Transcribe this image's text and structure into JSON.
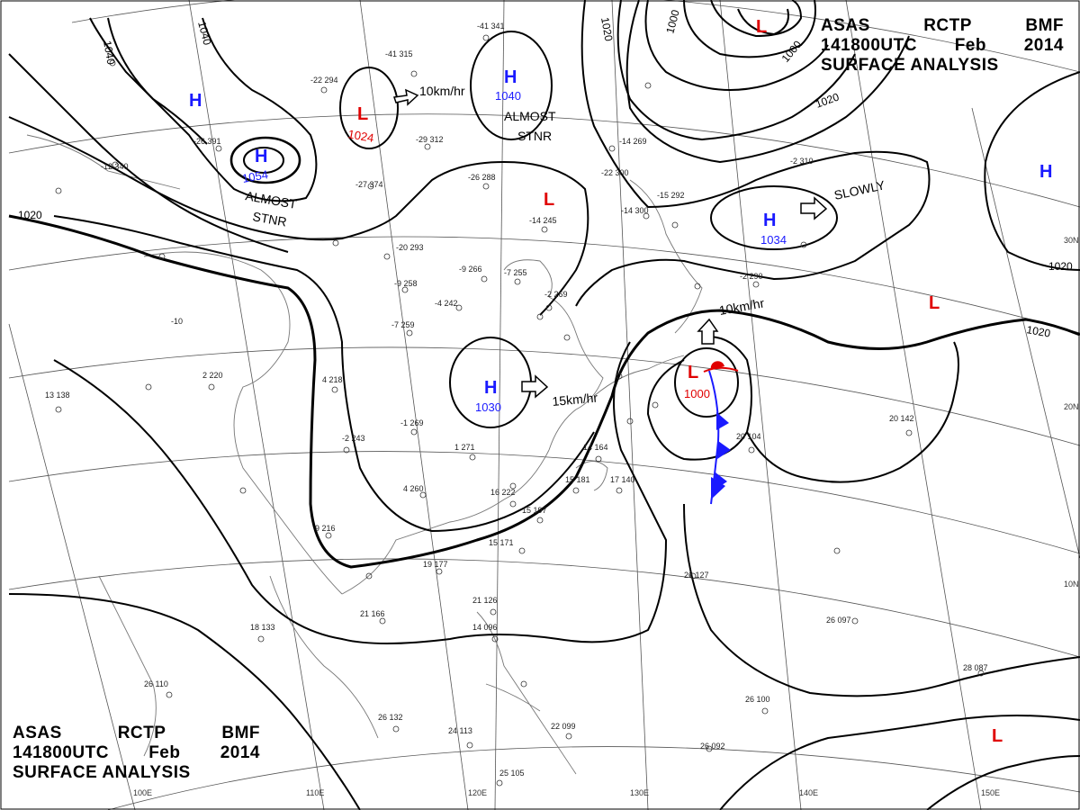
{
  "header": {
    "line1": [
      "ASAS",
      "RCTP",
      "BMF"
    ],
    "line2": [
      "141800UTC",
      "Feb",
      "2014"
    ],
    "line3": "SURFACE  ANALYSIS"
  },
  "pressure_centers": [
    {
      "type": "H",
      "value": "",
      "color": "#1a1aff"
    },
    {
      "type": "H",
      "value": "1054",
      "color": "#1a1aff"
    },
    {
      "type": "L",
      "value": "1024",
      "color": "#e00000"
    },
    {
      "type": "H",
      "value": "1040",
      "color": "#1a1aff"
    },
    {
      "type": "L",
      "value": "",
      "color": "#e00000"
    },
    {
      "type": "H",
      "value": "1030",
      "color": "#1a1aff"
    },
    {
      "type": "L",
      "value": "1000",
      "color": "#e00000"
    },
    {
      "type": "H",
      "value": "1034",
      "color": "#1a1aff"
    },
    {
      "type": "L",
      "value": "",
      "color": "#e00000"
    },
    {
      "type": "H",
      "value": "",
      "color": "#1a1aff"
    },
    {
      "type": "L",
      "value": "",
      "color": "#e00000"
    },
    {
      "type": "L",
      "value": "",
      "color": "#e00000"
    }
  ],
  "motion_labels": [
    "10km/hr",
    "ALMOST",
    "STNR",
    "ALMOST",
    "STNR",
    "15km/hr",
    "SLOWLY",
    "10km/hr"
  ],
  "isobar_labels": [
    "1040",
    "1040",
    "1020",
    "1020",
    "1000",
    "1000",
    "1020",
    "1020",
    "1020"
  ],
  "longitude_labels": [
    "100E",
    "110E",
    "120E",
    "130E",
    "140E",
    "150E"
  ],
  "latitude_labels": [
    "30N",
    "20N",
    "10N"
  ],
  "front_colors": {
    "cold": "#1a1aff",
    "warm": "#e00000"
  },
  "station_samples": [
    "-41 341",
    "-29 312",
    "-26 288",
    "-22 300",
    "-14 245",
    "-9 266",
    "-7 255",
    "-4 242",
    "-7 259",
    "-1 269",
    "1 271",
    "4 260",
    "-27 374",
    "-26 391",
    "-22 294",
    "-41 315",
    "-12 340",
    "-20 293",
    "-9 258",
    "-10",
    "2 220",
    "4 218",
    "13 138",
    "-2 243",
    "9 216",
    "16 222",
    "15 197",
    "15 171",
    "19 177",
    "21 166",
    "18 133",
    "21 126",
    "14 096",
    "26 110",
    "26 132",
    "24 113",
    "25 105",
    "22 099",
    "26 127",
    "26 097",
    "26 100",
    "26 092",
    "28 087",
    "20 142",
    "20 104",
    "14 164",
    "15 181",
    "17 140",
    "-2 310",
    "-2 290",
    "-2 269",
    "-14 300",
    "-15 292",
    "-14 269"
  ]
}
